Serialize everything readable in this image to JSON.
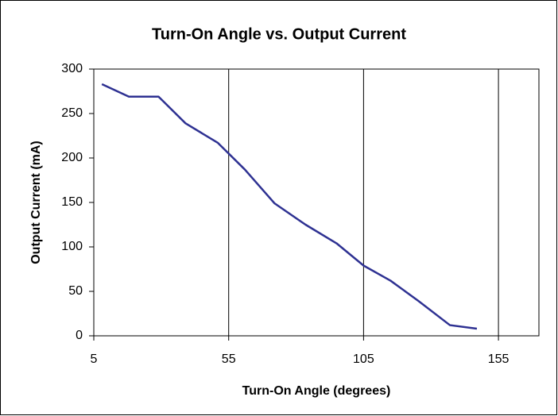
{
  "chart_data": {
    "type": "line",
    "title": "Turn-On Angle vs. Output Current",
    "x_label": "Turn-On Angle (degrees)",
    "y_label": "Output Current (mA)",
    "series": [
      {
        "name": "Output Current",
        "color": "#2e3192",
        "x": [
          8,
          18,
          29,
          39,
          51,
          61,
          72,
          83.5,
          95,
          105,
          115,
          125,
          137,
          147
        ],
        "values": [
          283,
          269,
          269,
          239,
          217,
          187,
          149,
          125,
          104,
          79,
          62,
          40,
          12,
          8
        ]
      }
    ],
    "xlim": [
      5,
      170
    ],
    "xticks": [
      5,
      55,
      105,
      155
    ],
    "ylim": [
      0,
      300
    ],
    "yticks": [
      0,
      50,
      100,
      150,
      200,
      250,
      300
    ],
    "x_grid": true,
    "y_grid": false
  }
}
